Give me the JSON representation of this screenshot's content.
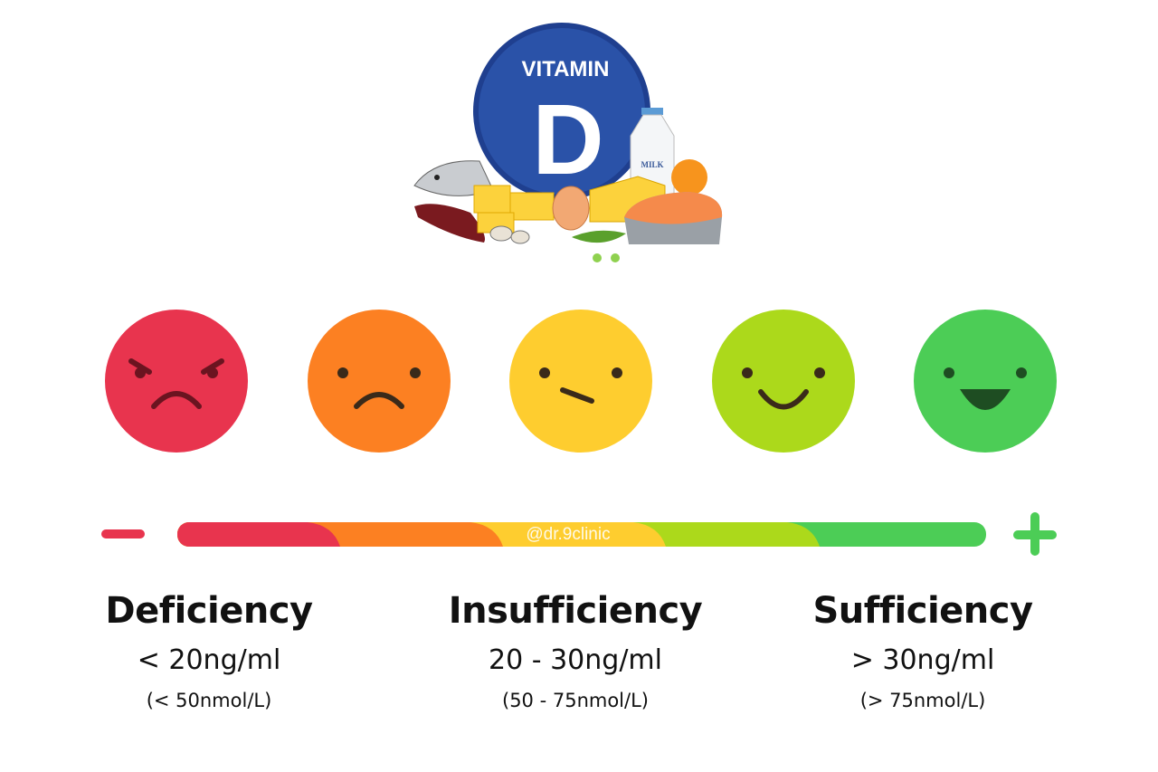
{
  "logo": {
    "line1": "VITAMIN",
    "line2": "D",
    "milk_label": "MILK"
  },
  "faces": [
    {
      "mood": "angry",
      "color": "#e8344e"
    },
    {
      "mood": "sad",
      "color": "#fc8022"
    },
    {
      "mood": "neutral",
      "color": "#fecd2f"
    },
    {
      "mood": "smile",
      "color": "#acd91b"
    },
    {
      "mood": "happy",
      "color": "#4ccd56"
    }
  ],
  "scale": {
    "min_symbol": "minus-icon",
    "max_symbol": "plus-icon",
    "watermark": "@dr.9clinic",
    "segments": [
      "#e8344e",
      "#fc8022",
      "#fecd2f",
      "#acd91b",
      "#4ccd56"
    ]
  },
  "levels": [
    {
      "title": "Deficiency",
      "range": "< 20ng/ml",
      "nmol": "(< 50nmol/L)"
    },
    {
      "title": "Insufficiency",
      "range": "20 - 30ng/ml",
      "nmol": "(50 - 75nmol/L)"
    },
    {
      "title": "Sufficiency",
      "range": "> 30ng/ml",
      "nmol": "(> 75nmol/L)"
    }
  ]
}
